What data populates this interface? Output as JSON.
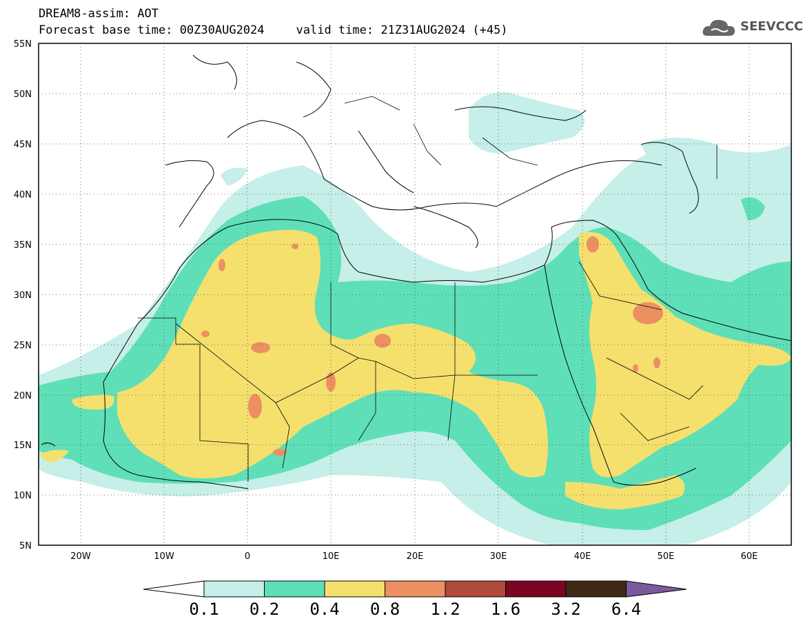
{
  "header": {
    "title": "DREAM8-assim: AOT",
    "base_time": "Forecast base time: 00Z30AUG2024",
    "valid_time": "valid time: 21Z31AUG2024 (+45)"
  },
  "logo": {
    "icon": "cloud-icon",
    "text": "SEEVCCC"
  },
  "map": {
    "lat_labels": [
      "55N",
      "50N",
      "45N",
      "40N",
      "35N",
      "30N",
      "25N",
      "20N",
      "15N",
      "10N",
      "5N"
    ],
    "lon_labels": [
      "20W",
      "10W",
      "0",
      "10E",
      "20E",
      "30E",
      "40E",
      "50E",
      "60E"
    ],
    "lat_range": [
      5,
      55
    ],
    "lon_range": [
      -25,
      65
    ],
    "grid": "dotted"
  },
  "colorbar": {
    "labels": [
      "0.1",
      "0.2",
      "0.4",
      "0.8",
      "1.2",
      "1.6",
      "3.2",
      "6.4"
    ],
    "colors": [
      "#c5efe8",
      "#5fdfb7",
      "#f5e06e",
      "#ec9062",
      "#b04a3a",
      "#7d0524",
      "#3f2a18",
      "#7a5a9c"
    ]
  }
}
